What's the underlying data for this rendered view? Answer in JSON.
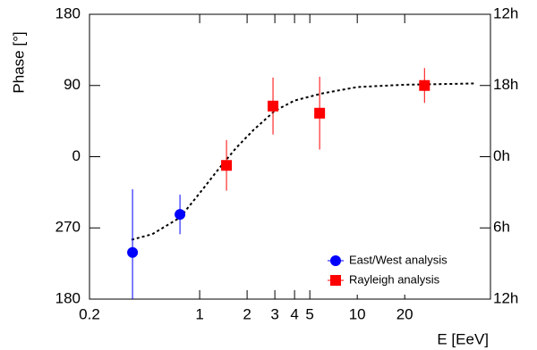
{
  "chart_data": {
    "type": "scatter",
    "x_scale": "log",
    "ylabel": "Phase [°]",
    "xlabel": "E [EeV]",
    "xlim": [
      0.2,
      70
    ],
    "xticks": [
      0.2,
      1,
      2,
      3,
      4,
      5,
      10,
      20
    ],
    "ylim": [
      -180,
      180
    ],
    "yticks": [
      {
        "value": -180,
        "label": "180"
      },
      {
        "value": -90,
        "label": "270"
      },
      0,
      90,
      180
    ],
    "y2lim": [
      -12,
      12
    ],
    "y2ticks": [
      {
        "value": -12,
        "label": "12h"
      },
      {
        "value": -6,
        "label": "6h"
      },
      {
        "value": 0,
        "label": "0h"
      },
      {
        "value": 6,
        "label": "18h"
      },
      {
        "value": 12,
        "label": "12h"
      }
    ],
    "legend": "lower right",
    "series": [
      {
        "name": "East/West analysis",
        "color": "#0000ff",
        "marker": "circle",
        "x": [
          0.375,
          0.75
        ],
        "values": [
          -121,
          -73
        ],
        "errors": [
          80,
          25
        ]
      },
      {
        "name": "Rayleigh analysis",
        "color": "#ff0000",
        "marker": "square",
        "x": [
          1.48,
          2.92,
          5.77,
          26.7
        ],
        "values": [
          -11,
          64,
          55,
          90
        ],
        "errors": [
          32,
          36,
          46,
          22
        ]
      }
    ],
    "fit": {
      "color": "#000000",
      "dash": true,
      "x": [
        0.37,
        0.5,
        0.75,
        1,
        1.3,
        1.7,
        2.2,
        3,
        4,
        6,
        10,
        20,
        55
      ],
      "values": [
        -105,
        -98,
        -77,
        -46,
        -17,
        11,
        34,
        58,
        71,
        80,
        88,
        91,
        92.5
      ]
    }
  }
}
